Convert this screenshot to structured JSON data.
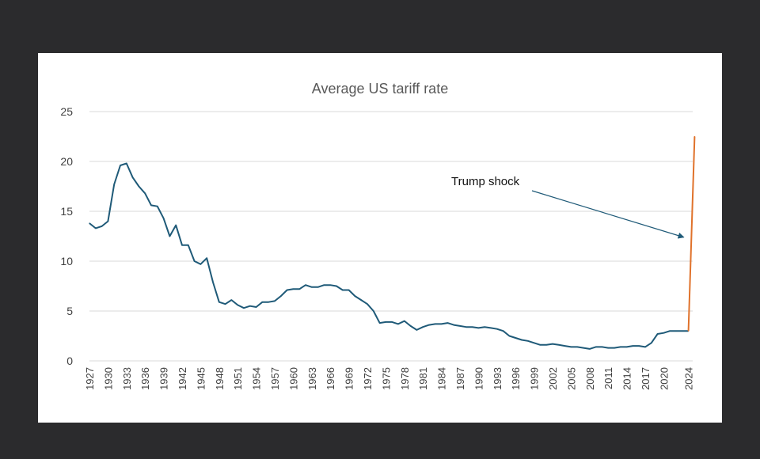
{
  "chart_data": {
    "type": "line",
    "title": "Average US tariff rate",
    "xlabel": "",
    "ylabel": "",
    "ylim": [
      0,
      25
    ],
    "yticks": [
      "0",
      "5",
      "10",
      "15",
      "20",
      "25"
    ],
    "xlim": [
      1927,
      2025
    ],
    "xticks": [
      "1927",
      "1930",
      "1933",
      "1936",
      "1939",
      "1942",
      "1945",
      "1948",
      "1951",
      "1954",
      "1957",
      "1960",
      "1963",
      "1966",
      "1969",
      "1972",
      "1975",
      "1978",
      "1981",
      "1984",
      "1987",
      "1990",
      "1993",
      "1996",
      "1999",
      "2002",
      "2005",
      "2008",
      "2011",
      "2014",
      "2017",
      "2020",
      "2024"
    ],
    "grid": "horizontal",
    "colors": {
      "historical": "#1f5a78",
      "shock": "#e0722b",
      "arrow": "#1f5a78"
    },
    "series": [
      {
        "x": [
          1927,
          1928,
          1929,
          1930,
          1931,
          1932,
          1933,
          1934,
          1935,
          1936,
          1937,
          1938,
          1939,
          1940,
          1941,
          1942,
          1943,
          1944,
          1945,
          1946,
          1947,
          1948,
          1949,
          1950,
          1951,
          1952,
          1953,
          1954,
          1955,
          1956,
          1957,
          1958,
          1959,
          1960,
          1961,
          1962,
          1963,
          1964,
          1965,
          1966,
          1967,
          1968,
          1969,
          1970,
          1971,
          1972,
          1973,
          1974,
          1975,
          1976,
          1977,
          1978,
          1979,
          1980,
          1981,
          1982,
          1983,
          1984,
          1985,
          1986,
          1987,
          1988,
          1989,
          1990,
          1991,
          1992,
          1993,
          1994,
          1995,
          1996,
          1997,
          1998,
          1999,
          2000,
          2001,
          2002,
          2003,
          2004,
          2005,
          2006,
          2007,
          2008,
          2009,
          2010,
          2011,
          2012,
          2013,
          2014,
          2015,
          2016,
          2017,
          2018,
          2019,
          2020,
          2021,
          2022,
          2023,
          2024
        ],
        "values": [
          13.8,
          13.3,
          13.5,
          14.0,
          17.7,
          19.6,
          19.8,
          18.4,
          17.5,
          16.8,
          15.6,
          15.5,
          14.3,
          12.5,
          13.6,
          11.6,
          11.6,
          10.0,
          9.7,
          10.3,
          7.9,
          5.9,
          5.7,
          6.1,
          5.6,
          5.3,
          5.5,
          5.4,
          5.9,
          5.9,
          6.0,
          6.5,
          7.1,
          7.2,
          7.2,
          7.6,
          7.4,
          7.4,
          7.6,
          7.6,
          7.5,
          7.1,
          7.1,
          6.5,
          6.1,
          5.7,
          5.0,
          3.8,
          3.9,
          3.9,
          3.7,
          4.0,
          3.5,
          3.1,
          3.4,
          3.6,
          3.7,
          3.7,
          3.8,
          3.6,
          3.5,
          3.4,
          3.4,
          3.3,
          3.4,
          3.3,
          3.2,
          3.0,
          2.5,
          2.3,
          2.1,
          2.0,
          1.8,
          1.6,
          1.6,
          1.7,
          1.6,
          1.5,
          1.4,
          1.4,
          1.3,
          1.2,
          1.4,
          1.4,
          1.3,
          1.3,
          1.4,
          1.4,
          1.5,
          1.5,
          1.4,
          1.8,
          2.7,
          2.8,
          3.0,
          3.0,
          3.0,
          3.0
        ]
      },
      {
        "x": [
          2024,
          2025
        ],
        "values": [
          3.0,
          22.5
        ]
      }
    ],
    "annotations": [
      {
        "text": "Trump shock",
        "arrow_to": [
          2024,
          12.4
        ]
      }
    ]
  }
}
